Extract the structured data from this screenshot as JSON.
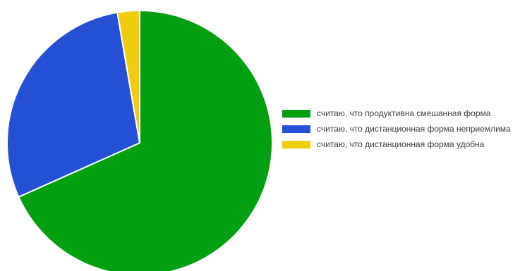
{
  "chart_data": {
    "type": "pie",
    "title": "",
    "start_angle_deg": 0,
    "direction": "clockwise",
    "legend_position": "right",
    "slices": [
      {
        "label": "считаю, что продуктивна смешанная форма",
        "value": 68.3,
        "color": "#00a010"
      },
      {
        "label": "считаю, что дистанционная форма неприемлима",
        "value": 29.0,
        "color": "#2450d6"
      },
      {
        "label": "считаю, что дистанционная форма удобна",
        "value": 2.7,
        "color": "#f0cc0c"
      }
    ]
  }
}
